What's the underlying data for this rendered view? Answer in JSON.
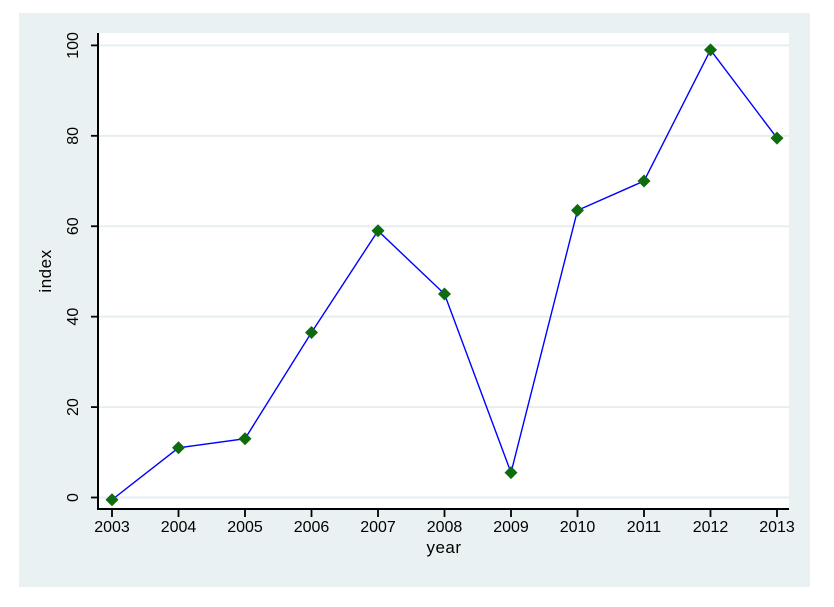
{
  "figure": {
    "page_background": "#ffffff",
    "graph_background": "#e9f1f2",
    "plot_background": "#ffffff",
    "grid_color": "#e7eef1",
    "axis_color": "#000000",
    "line_color": "#0000ff",
    "marker_color": "#0e6c0e",
    "text_color": "#000000"
  },
  "chart_data": {
    "type": "line",
    "title": "",
    "xlabel": "year",
    "ylabel": "index",
    "marker": "diamond",
    "grid": "horizontal",
    "legend": "none",
    "x": [
      2003,
      2004,
      2005,
      2006,
      2007,
      2008,
      2009,
      2010,
      2011,
      2012,
      2013
    ],
    "values": [
      -0.5,
      11,
      13,
      36.5,
      59,
      45,
      5.5,
      63.5,
      70,
      99,
      79.5
    ],
    "x_tick_labels": [
      "2003",
      "2004",
      "2005",
      "2006",
      "2007",
      "2008",
      "2009",
      "2010",
      "2011",
      "2012",
      "2013"
    ],
    "y_ticks": [
      0,
      20,
      40,
      60,
      80,
      100
    ],
    "y_tick_labels": [
      "0",
      "20",
      "40",
      "60",
      "80",
      "100"
    ],
    "xlim": [
      2002.8,
      2013.2
    ],
    "ylim": [
      -2.5,
      102.8
    ]
  }
}
